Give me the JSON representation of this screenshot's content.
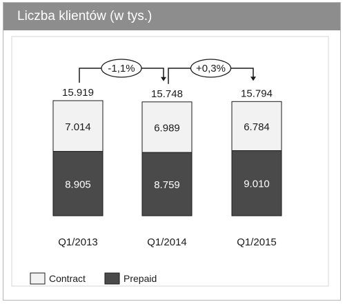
{
  "header": {
    "title": "Liczba klientów (w tys.)"
  },
  "colors": {
    "contract": "#f2f2f2",
    "prepaid": "#4a4a4a",
    "header": "#8d8d8d",
    "border": "#1a1a1a"
  },
  "chart_data": {
    "type": "bar",
    "stacked": true,
    "title": "Liczba klientów (w tys.)",
    "categories": [
      "Q1/2013",
      "Q1/2014",
      "Q1/2015"
    ],
    "series": [
      {
        "name": "Prepaid",
        "values": [
          8.905,
          8.759,
          9.01
        ],
        "labels": [
          "8.905",
          "8.759",
          "9.010"
        ]
      },
      {
        "name": "Contract",
        "values": [
          7.014,
          6.989,
          6.784
        ],
        "labels": [
          "7.014",
          "6.989",
          "6.784"
        ]
      }
    ],
    "totals": [
      15.919,
      15.748,
      15.794
    ],
    "total_labels": [
      "15.919",
      "15.748",
      "15.794"
    ],
    "changes": [
      {
        "from": 0,
        "to": 1,
        "label": "-1,1%"
      },
      {
        "from": 1,
        "to": 2,
        "label": "+0,3%"
      }
    ],
    "ylim": [
      0,
      15.919
    ],
    "grid": false,
    "legend": {
      "position": "bottom-left",
      "items": [
        "Contract",
        "Prepaid"
      ]
    }
  }
}
